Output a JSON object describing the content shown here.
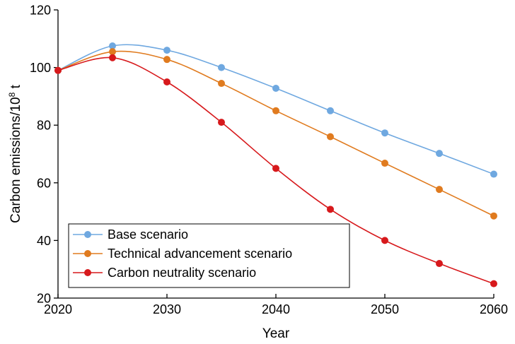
{
  "chart_data": {
    "type": "line",
    "title": "",
    "xlabel": "Year",
    "ylabel_main": "Carbon emissions/10",
    "ylabel_sup": "8",
    "ylabel_unit": " t",
    "xlim": [
      2020,
      2060
    ],
    "ylim": [
      20,
      120
    ],
    "xticks": [
      "2020",
      "2030",
      "2040",
      "2050",
      "2060"
    ],
    "yticks": [
      "20",
      "40",
      "60",
      "80",
      "100",
      "120"
    ],
    "grid": false,
    "legend_position": "bottom-left",
    "x": [
      2020,
      2025,
      2030,
      2035,
      2040,
      2045,
      2050,
      2055,
      2060
    ],
    "series": [
      {
        "name": "Base scenario",
        "color": "#6fa8e0",
        "values": [
          99,
          107.5,
          106,
          100,
          92.8,
          85,
          77.3,
          70.2,
          63
        ]
      },
      {
        "name": "Technical advancement scenario",
        "color": "#e07b1f",
        "values": [
          99,
          105.5,
          102.8,
          94.5,
          85,
          76,
          66.8,
          57.7,
          48.5
        ]
      },
      {
        "name": "Carbon neutrality scenario",
        "color": "#d7191c",
        "values": [
          99,
          103.4,
          95,
          81,
          65,
          50.8,
          40,
          32,
          25
        ]
      }
    ]
  }
}
